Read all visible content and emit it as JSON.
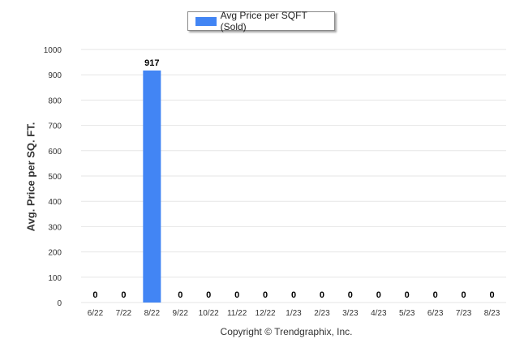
{
  "colors": {
    "bar": "#4285f4",
    "grid": "#e6e6e6",
    "axis_text": "#333333"
  },
  "legend": {
    "label": "Avg Price per SQFT (Sold)"
  },
  "footer": {
    "copyright": "Copyright © Trendgraphix, Inc."
  },
  "chart_data": {
    "type": "bar",
    "categories": [
      "6/22",
      "7/22",
      "8/22",
      "9/22",
      "10/22",
      "11/22",
      "12/22",
      "1/23",
      "2/23",
      "3/23",
      "4/23",
      "5/23",
      "6/23",
      "7/23",
      "8/23"
    ],
    "series": [
      {
        "name": "Avg Price per SQFT (Sold)",
        "values": [
          0,
          0,
          917,
          0,
          0,
          0,
          0,
          0,
          0,
          0,
          0,
          0,
          0,
          0,
          0
        ]
      }
    ],
    "data_labels": [
      "0",
      "0",
      "917",
      "0",
      "0",
      "0",
      "0",
      "0",
      "0",
      "0",
      "0",
      "0",
      "0",
      "0",
      "0"
    ],
    "ylabel": "Avg. Price per SQ. FT.",
    "ylim": [
      0,
      1000
    ],
    "yticks": [
      0,
      100,
      200,
      300,
      400,
      500,
      600,
      700,
      800,
      900,
      1000
    ],
    "grid": true,
    "legend_position": "top-center"
  }
}
